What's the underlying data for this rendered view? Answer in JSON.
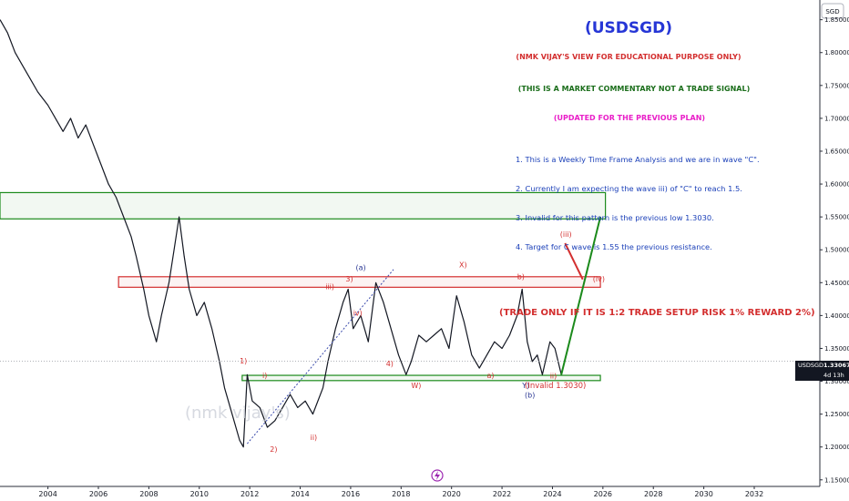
{
  "symbol_badge": "SGD",
  "chart_data": {
    "type": "line",
    "title": "(USDSGD)",
    "notes": [
      "(NMK VIJAY'S VIEW FOR EDUCATIONAL PURPOSE ONLY)",
      "(THIS IS A MARKET COMMENTARY NOT A TRADE SIGNAL)",
      "(UPDATED FOR THE PREVIOUS PLAN)"
    ],
    "analysis_points": [
      "1. This is a Weekly Time Frame Analysis and we are in wave \"C\".",
      "2. Currently I am expecting the wave iii) of \"C\" to reach 1.5.",
      "3. Invalid for this pattern is the previous low 1.3030.",
      "4. Target for C wave is 1.55 the previous resistance."
    ],
    "trade_note": "(TRADE ONLY IF IT IS 1:2 TRADE SETUP RISK 1% REWARD 2%)",
    "watermark": "(nmk vijay's)",
    "y_ticks": [
      "1.85000",
      "1.80000",
      "1.75000",
      "1.70000",
      "1.65000",
      "1.60000",
      "1.55000",
      "1.50000",
      "1.45000",
      "1.40000",
      "1.35000",
      "1.30000",
      "1.25000",
      "1.20000",
      "1.15000"
    ],
    "x_ticks": [
      "2004",
      "2006",
      "2008",
      "2010",
      "2012",
      "2014",
      "2016",
      "2018",
      "2020",
      "2022",
      "2024",
      "2026",
      "2028",
      "2030",
      "2032"
    ],
    "ylim": [
      1.14,
      1.88
    ],
    "xlim": [
      2002.1,
      2034.6
    ],
    "current_price": {
      "symbol": "USDSGD",
      "value": "1.33067",
      "countdown": "4d 13h"
    },
    "price_path": [
      [
        2002.1,
        1.85
      ],
      [
        2002.4,
        1.83
      ],
      [
        2002.7,
        1.8
      ],
      [
        2003.0,
        1.78
      ],
      [
        2003.3,
        1.76
      ],
      [
        2003.6,
        1.74
      ],
      [
        2004.0,
        1.72
      ],
      [
        2004.3,
        1.7
      ],
      [
        2004.6,
        1.68
      ],
      [
        2004.9,
        1.7
      ],
      [
        2005.2,
        1.67
      ],
      [
        2005.5,
        1.69
      ],
      [
        2005.8,
        1.66
      ],
      [
        2006.1,
        1.63
      ],
      [
        2006.4,
        1.6
      ],
      [
        2006.7,
        1.58
      ],
      [
        2007.0,
        1.55
      ],
      [
        2007.3,
        1.52
      ],
      [
        2007.5,
        1.49
      ],
      [
        2007.8,
        1.44
      ],
      [
        2008.0,
        1.4
      ],
      [
        2008.3,
        1.36
      ],
      [
        2008.5,
        1.4
      ],
      [
        2008.8,
        1.45
      ],
      [
        2009.0,
        1.5
      ],
      [
        2009.2,
        1.55
      ],
      [
        2009.4,
        1.49
      ],
      [
        2009.6,
        1.44
      ],
      [
        2009.9,
        1.4
      ],
      [
        2010.2,
        1.42
      ],
      [
        2010.5,
        1.38
      ],
      [
        2010.8,
        1.33
      ],
      [
        2011.0,
        1.29
      ],
      [
        2011.3,
        1.25
      ],
      [
        2011.6,
        1.21
      ],
      [
        2011.75,
        1.2
      ],
      [
        2011.9,
        1.31
      ],
      [
        2012.1,
        1.27
      ],
      [
        2012.4,
        1.26
      ],
      [
        2012.7,
        1.23
      ],
      [
        2013.0,
        1.24
      ],
      [
        2013.3,
        1.26
      ],
      [
        2013.6,
        1.28
      ],
      [
        2013.9,
        1.26
      ],
      [
        2014.2,
        1.27
      ],
      [
        2014.5,
        1.25
      ],
      [
        2014.9,
        1.29
      ],
      [
        2015.1,
        1.33
      ],
      [
        2015.4,
        1.38
      ],
      [
        2015.7,
        1.42
      ],
      [
        2015.9,
        1.44
      ],
      [
        2016.1,
        1.38
      ],
      [
        2016.4,
        1.4
      ],
      [
        2016.7,
        1.36
      ],
      [
        2017.0,
        1.45
      ],
      [
        2017.3,
        1.42
      ],
      [
        2017.6,
        1.38
      ],
      [
        2017.9,
        1.34
      ],
      [
        2018.2,
        1.31
      ],
      [
        2018.4,
        1.33
      ],
      [
        2018.7,
        1.37
      ],
      [
        2019.0,
        1.36
      ],
      [
        2019.3,
        1.37
      ],
      [
        2019.6,
        1.38
      ],
      [
        2019.9,
        1.35
      ],
      [
        2020.2,
        1.43
      ],
      [
        2020.5,
        1.39
      ],
      [
        2020.8,
        1.34
      ],
      [
        2021.1,
        1.32
      ],
      [
        2021.4,
        1.34
      ],
      [
        2021.7,
        1.36
      ],
      [
        2022.0,
        1.35
      ],
      [
        2022.3,
        1.37
      ],
      [
        2022.6,
        1.4
      ],
      [
        2022.8,
        1.44
      ],
      [
        2023.0,
        1.36
      ],
      [
        2023.2,
        1.33
      ],
      [
        2023.4,
        1.34
      ],
      [
        2023.6,
        1.31
      ],
      [
        2023.9,
        1.36
      ],
      [
        2024.1,
        1.35
      ],
      [
        2024.35,
        1.31
      ]
    ],
    "zones": [
      {
        "name": "upper-resistance-zone",
        "y_top": 1.587,
        "y_bottom": 1.547,
        "color": "#1b8a1b"
      },
      {
        "name": "middle-resistance-zone",
        "y_top": 1.459,
        "y_bottom": 1.443,
        "color": "#d32f2f"
      },
      {
        "name": "support-zone",
        "y_top": 1.309,
        "y_bottom": 1.301,
        "color": "#1b8a1b"
      }
    ],
    "projection": {
      "points": [
        [
          2024.35,
          1.31
        ],
        [
          2025.9,
          1.55
        ]
      ],
      "color": "#1b8a1b"
    },
    "wave_iv_path": {
      "points": [
        [
          2024.5,
          1.51
        ],
        [
          2025.2,
          1.455
        ]
      ],
      "color": "#d32f2f"
    },
    "wave_labels": [
      {
        "text": "(a)",
        "x": 2016.2,
        "y": 1.469,
        "color": "#283593"
      },
      {
        "text": "X)",
        "x": 2020.3,
        "y": 1.473,
        "color": "#d32f2f"
      },
      {
        "text": "3)",
        "x": 2015.8,
        "y": 1.452,
        "color": "#d32f2f"
      },
      {
        "text": "b)",
        "x": 2022.6,
        "y": 1.455,
        "color": "#d32f2f"
      },
      {
        "text": "iii)",
        "x": 2015.0,
        "y": 1.44,
        "color": "#d32f2f"
      },
      {
        "text": "iv)",
        "x": 2016.1,
        "y": 1.4,
        "color": "#d32f2f"
      },
      {
        "text": "4)",
        "x": 2017.4,
        "y": 1.323,
        "color": "#d32f2f"
      },
      {
        "text": "1)",
        "x": 2011.6,
        "y": 1.327,
        "color": "#d32f2f"
      },
      {
        "text": "i)",
        "x": 2012.5,
        "y": 1.305,
        "color": "#d32f2f"
      },
      {
        "text": "2)",
        "x": 2012.8,
        "y": 1.193,
        "color": "#d32f2f"
      },
      {
        "text": "ii)",
        "x": 2014.4,
        "y": 1.211,
        "color": "#d32f2f"
      },
      {
        "text": "W)",
        "x": 2018.4,
        "y": 1.29,
        "color": "#d32f2f"
      },
      {
        "text": "a)",
        "x": 2021.4,
        "y": 1.305,
        "color": "#d32f2f"
      },
      {
        "text": "Y)",
        "x": 2022.8,
        "y": 1.29,
        "color": "#283593"
      },
      {
        "text": "(b)",
        "x": 2022.9,
        "y": 1.275,
        "color": "#283593"
      },
      {
        "text": "ii)",
        "x": 2023.9,
        "y": 1.304,
        "color": "#d32f2f"
      },
      {
        "text": "(iii)",
        "x": 2024.3,
        "y": 1.52,
        "color": "#d32f2f"
      },
      {
        "text": "(iv)",
        "x": 2025.6,
        "y": 1.452,
        "color": "#d32f2f"
      },
      {
        "text": "(Invalid 1.3030)",
        "x": 2022.9,
        "y": 1.29,
        "color": "#d32f2f"
      }
    ],
    "channel_line": {
      "points": [
        [
          2011.9,
          1.205
        ],
        [
          2017.7,
          1.47
        ]
      ],
      "color": "#3949ab"
    },
    "axis_price_line": 1.33067,
    "colors": {
      "line": "#131722",
      "title": "#2636d6",
      "red": "#d32f2f",
      "green": "#1b6e1b",
      "magenta": "#e91ec8",
      "blue": "#1a3fb8"
    }
  }
}
